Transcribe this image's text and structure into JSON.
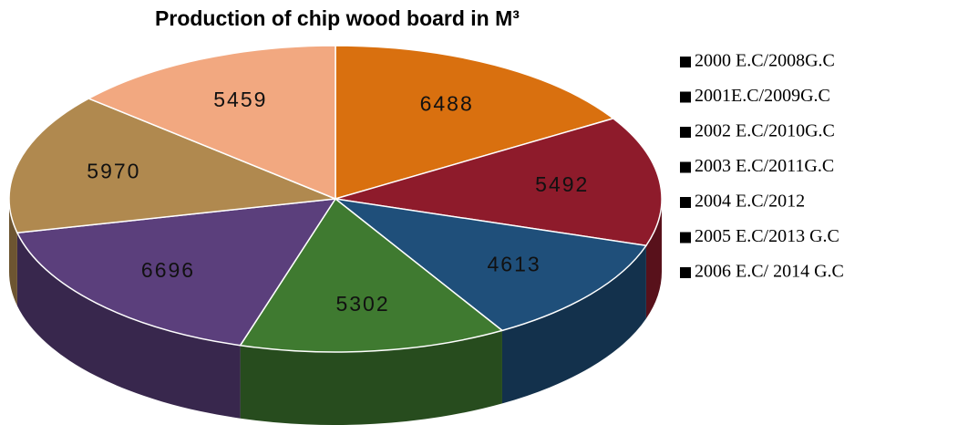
{
  "chart_data": {
    "type": "pie",
    "title": "Production of chip wood board in M³",
    "categories": [
      "2000 E.C/2008G.C",
      "2001E.C/2009G.C",
      "2002 E.C/2010G.C",
      "2003 E.C/2011G.C",
      "2004 E.C/2012",
      "2005 E.C/2013 G.C",
      "2006 E.C/ 2014 G.C"
    ],
    "values": [
      6488,
      5492,
      4613,
      5302,
      6696,
      5970,
      5459
    ],
    "colors": [
      "#d9700f",
      "#8e1b2b",
      "#1f4f7a",
      "#3f7a30",
      "#5b3f7c",
      "#b0894f",
      "#f2a880"
    ],
    "legend": "right"
  }
}
